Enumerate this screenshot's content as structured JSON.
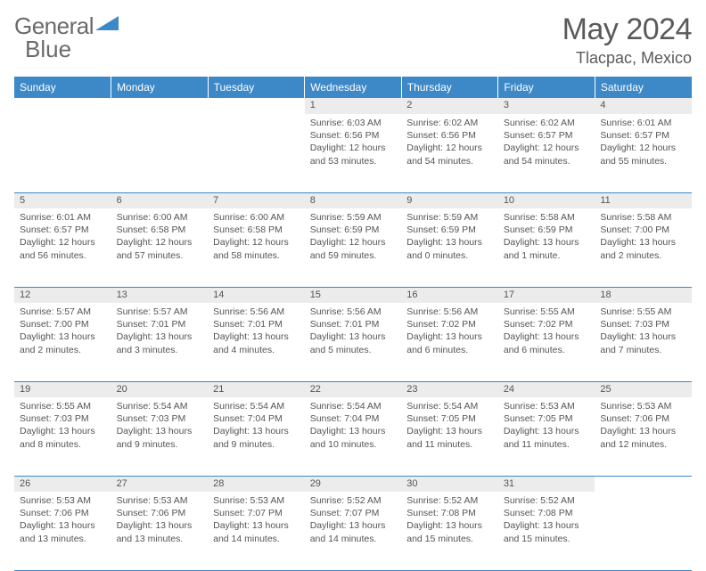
{
  "logo": {
    "text1": "General",
    "text2": "Blue"
  },
  "title": "May 2024",
  "location": "Tlacpac, Mexico",
  "colors": {
    "header_bg": "#3d88c7",
    "header_fg": "#ffffff",
    "daynum_bg": "#ececec",
    "border": "#3d88c7",
    "text": "#555555",
    "logo_accent": "#3d88c7"
  },
  "dayHeaders": [
    "Sunday",
    "Monday",
    "Tuesday",
    "Wednesday",
    "Thursday",
    "Friday",
    "Saturday"
  ],
  "weeks": [
    [
      null,
      null,
      null,
      {
        "n": "1",
        "sr": "6:03 AM",
        "ss": "6:56 PM",
        "dl": "12 hours and 53 minutes."
      },
      {
        "n": "2",
        "sr": "6:02 AM",
        "ss": "6:56 PM",
        "dl": "12 hours and 54 minutes."
      },
      {
        "n": "3",
        "sr": "6:02 AM",
        "ss": "6:57 PM",
        "dl": "12 hours and 54 minutes."
      },
      {
        "n": "4",
        "sr": "6:01 AM",
        "ss": "6:57 PM",
        "dl": "12 hours and 55 minutes."
      }
    ],
    [
      {
        "n": "5",
        "sr": "6:01 AM",
        "ss": "6:57 PM",
        "dl": "12 hours and 56 minutes."
      },
      {
        "n": "6",
        "sr": "6:00 AM",
        "ss": "6:58 PM",
        "dl": "12 hours and 57 minutes."
      },
      {
        "n": "7",
        "sr": "6:00 AM",
        "ss": "6:58 PM",
        "dl": "12 hours and 58 minutes."
      },
      {
        "n": "8",
        "sr": "5:59 AM",
        "ss": "6:59 PM",
        "dl": "12 hours and 59 minutes."
      },
      {
        "n": "9",
        "sr": "5:59 AM",
        "ss": "6:59 PM",
        "dl": "13 hours and 0 minutes."
      },
      {
        "n": "10",
        "sr": "5:58 AM",
        "ss": "6:59 PM",
        "dl": "13 hours and 1 minute."
      },
      {
        "n": "11",
        "sr": "5:58 AM",
        "ss": "7:00 PM",
        "dl": "13 hours and 2 minutes."
      }
    ],
    [
      {
        "n": "12",
        "sr": "5:57 AM",
        "ss": "7:00 PM",
        "dl": "13 hours and 2 minutes."
      },
      {
        "n": "13",
        "sr": "5:57 AM",
        "ss": "7:01 PM",
        "dl": "13 hours and 3 minutes."
      },
      {
        "n": "14",
        "sr": "5:56 AM",
        "ss": "7:01 PM",
        "dl": "13 hours and 4 minutes."
      },
      {
        "n": "15",
        "sr": "5:56 AM",
        "ss": "7:01 PM",
        "dl": "13 hours and 5 minutes."
      },
      {
        "n": "16",
        "sr": "5:56 AM",
        "ss": "7:02 PM",
        "dl": "13 hours and 6 minutes."
      },
      {
        "n": "17",
        "sr": "5:55 AM",
        "ss": "7:02 PM",
        "dl": "13 hours and 6 minutes."
      },
      {
        "n": "18",
        "sr": "5:55 AM",
        "ss": "7:03 PM",
        "dl": "13 hours and 7 minutes."
      }
    ],
    [
      {
        "n": "19",
        "sr": "5:55 AM",
        "ss": "7:03 PM",
        "dl": "13 hours and 8 minutes."
      },
      {
        "n": "20",
        "sr": "5:54 AM",
        "ss": "7:03 PM",
        "dl": "13 hours and 9 minutes."
      },
      {
        "n": "21",
        "sr": "5:54 AM",
        "ss": "7:04 PM",
        "dl": "13 hours and 9 minutes."
      },
      {
        "n": "22",
        "sr": "5:54 AM",
        "ss": "7:04 PM",
        "dl": "13 hours and 10 minutes."
      },
      {
        "n": "23",
        "sr": "5:54 AM",
        "ss": "7:05 PM",
        "dl": "13 hours and 11 minutes."
      },
      {
        "n": "24",
        "sr": "5:53 AM",
        "ss": "7:05 PM",
        "dl": "13 hours and 11 minutes."
      },
      {
        "n": "25",
        "sr": "5:53 AM",
        "ss": "7:06 PM",
        "dl": "13 hours and 12 minutes."
      }
    ],
    [
      {
        "n": "26",
        "sr": "5:53 AM",
        "ss": "7:06 PM",
        "dl": "13 hours and 13 minutes."
      },
      {
        "n": "27",
        "sr": "5:53 AM",
        "ss": "7:06 PM",
        "dl": "13 hours and 13 minutes."
      },
      {
        "n": "28",
        "sr": "5:53 AM",
        "ss": "7:07 PM",
        "dl": "13 hours and 14 minutes."
      },
      {
        "n": "29",
        "sr": "5:52 AM",
        "ss": "7:07 PM",
        "dl": "13 hours and 14 minutes."
      },
      {
        "n": "30",
        "sr": "5:52 AM",
        "ss": "7:08 PM",
        "dl": "13 hours and 15 minutes."
      },
      {
        "n": "31",
        "sr": "5:52 AM",
        "ss": "7:08 PM",
        "dl": "13 hours and 15 minutes."
      },
      null
    ]
  ],
  "labels": {
    "sunrise": "Sunrise:",
    "sunset": "Sunset:",
    "daylight": "Daylight:"
  }
}
